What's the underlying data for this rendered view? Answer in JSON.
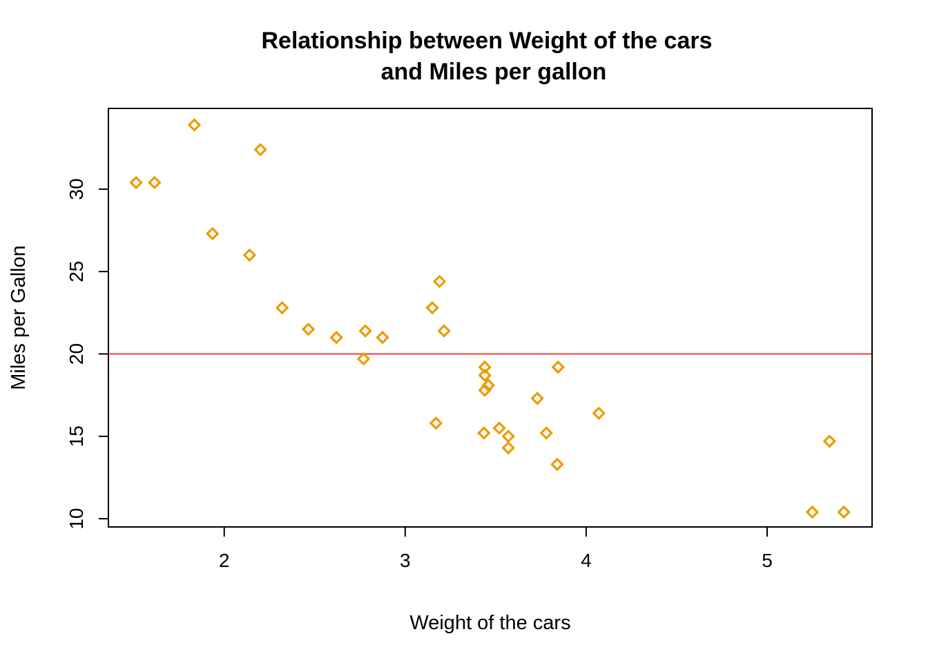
{
  "chart_data": {
    "type": "scatter",
    "title_lines": [
      "Relationship between Weight of the cars",
      "and Miles per gallon"
    ],
    "xlabel": "Weight of the cars",
    "ylabel": "Miles per Gallon",
    "xlim": [
      1.36,
      5.58
    ],
    "ylim": [
      9.5,
      34.9
    ],
    "xticks": [
      2,
      3,
      4,
      5
    ],
    "yticks": [
      10,
      15,
      20,
      25,
      30
    ],
    "grid": false,
    "legend": false,
    "marker": "diamond-open",
    "colors": {
      "points": "#EE9A00",
      "reference_line": "#FF0000",
      "axes": "#000000"
    },
    "reference_line": {
      "orientation": "horizontal",
      "y": 20
    },
    "points": [
      {
        "x": 2.62,
        "y": 21.0
      },
      {
        "x": 2.875,
        "y": 21.0
      },
      {
        "x": 2.32,
        "y": 22.8
      },
      {
        "x": 3.215,
        "y": 21.4
      },
      {
        "x": 3.44,
        "y": 18.7
      },
      {
        "x": 3.46,
        "y": 18.1
      },
      {
        "x": 3.57,
        "y": 14.3
      },
      {
        "x": 3.19,
        "y": 24.4
      },
      {
        "x": 3.15,
        "y": 22.8
      },
      {
        "x": 3.44,
        "y": 19.2
      },
      {
        "x": 3.44,
        "y": 17.8
      },
      {
        "x": 4.07,
        "y": 16.4
      },
      {
        "x": 3.73,
        "y": 17.3
      },
      {
        "x": 3.78,
        "y": 15.2
      },
      {
        "x": 5.25,
        "y": 10.4
      },
      {
        "x": 5.424,
        "y": 10.4
      },
      {
        "x": 5.345,
        "y": 14.7
      },
      {
        "x": 2.2,
        "y": 32.4
      },
      {
        "x": 1.615,
        "y": 30.4
      },
      {
        "x": 1.835,
        "y": 33.9
      },
      {
        "x": 2.465,
        "y": 21.5
      },
      {
        "x": 3.52,
        "y": 15.5
      },
      {
        "x": 3.435,
        "y": 15.2
      },
      {
        "x": 3.84,
        "y": 13.3
      },
      {
        "x": 3.845,
        "y": 19.2
      },
      {
        "x": 1.935,
        "y": 27.3
      },
      {
        "x": 2.14,
        "y": 26.0
      },
      {
        "x": 1.513,
        "y": 30.4
      },
      {
        "x": 3.17,
        "y": 15.8
      },
      {
        "x": 2.77,
        "y": 19.7
      },
      {
        "x": 3.57,
        "y": 15.0
      },
      {
        "x": 2.78,
        "y": 21.4
      }
    ]
  }
}
